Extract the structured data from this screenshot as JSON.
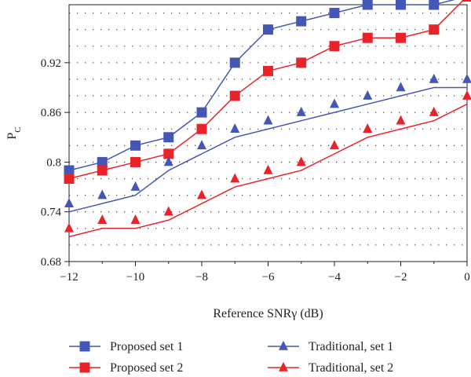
{
  "chart_data": {
    "type": "line",
    "xlabel": "Reference SNRγ (dB)",
    "ylabel_main": "P",
    "ylabel_sub": "C",
    "xlim": [
      -12,
      0
    ],
    "ylim": [
      0.68,
      0.99
    ],
    "x_ticks": [
      -12,
      -10,
      -8,
      -6,
      -4,
      -2,
      0
    ],
    "x_tick_labels": [
      "−12",
      "−10",
      "−8",
      "−6",
      "−4",
      "−2",
      "0"
    ],
    "y_ticks": [
      0.68,
      0.74,
      0.8,
      0.86,
      0.92
    ],
    "y_tick_labels": [
      "0.68",
      "0.74",
      "0.8",
      "0.86",
      "0.92"
    ],
    "grid": "dotted horizontal",
    "legend_position": "bottom",
    "series": [
      {
        "name": "Proposed set 1",
        "color": "#4457b5",
        "marker": "square",
        "x": [
          -12,
          -11,
          -10,
          -9,
          -8,
          -7,
          -6,
          -5,
          -4,
          -3,
          -2,
          -1,
          0
        ],
        "values": [
          0.79,
          0.8,
          0.82,
          0.83,
          0.86,
          0.92,
          0.96,
          0.97,
          0.98,
          0.99,
          0.99,
          0.99,
          1.0
        ]
      },
      {
        "name": "Proposed set 2",
        "color": "#e8232a",
        "marker": "square",
        "x": [
          -12,
          -11,
          -10,
          -9,
          -8,
          -7,
          -6,
          -5,
          -4,
          -3,
          -2,
          -1,
          0
        ],
        "values": [
          0.78,
          0.79,
          0.8,
          0.81,
          0.84,
          0.88,
          0.91,
          0.92,
          0.94,
          0.95,
          0.95,
          0.96,
          1.0
        ]
      },
      {
        "name": "Traditional, set 1",
        "color": "#4457b5",
        "marker": "triangle",
        "x": [
          -12,
          -11,
          -10,
          -9,
          -8,
          -7,
          -6,
          -5,
          -4,
          -3,
          -2,
          -1,
          0
        ],
        "values": [
          0.75,
          0.76,
          0.77,
          0.8,
          0.82,
          0.84,
          0.85,
          0.86,
          0.87,
          0.88,
          0.89,
          0.9,
          0.9
        ]
      },
      {
        "name": "Traditional, set 2",
        "color": "#e8232a",
        "marker": "triangle",
        "x": [
          -12,
          -11,
          -10,
          -9,
          -8,
          -7,
          -6,
          -5,
          -4,
          -3,
          -2,
          -1,
          0
        ],
        "values": [
          0.72,
          0.73,
          0.73,
          0.74,
          0.76,
          0.78,
          0.79,
          0.8,
          0.82,
          0.84,
          0.85,
          0.86,
          0.88
        ]
      }
    ]
  }
}
